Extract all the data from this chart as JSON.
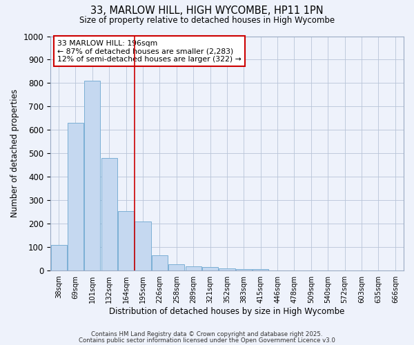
{
  "title_line1": "33, MARLOW HILL, HIGH WYCOMBE, HP11 1PN",
  "title_line2": "Size of property relative to detached houses in High Wycombe",
  "xlabel": "Distribution of detached houses by size in High Wycombe",
  "ylabel": "Number of detached properties",
  "annotation_line1": "33 MARLOW HILL: 196sqm",
  "annotation_line2": "← 87% of detached houses are smaller (2,283)",
  "annotation_line3": "12% of semi-detached houses are larger (322) →",
  "categories": [
    "38sqm",
    "69sqm",
    "101sqm",
    "132sqm",
    "164sqm",
    "195sqm",
    "226sqm",
    "258sqm",
    "289sqm",
    "321sqm",
    "352sqm",
    "383sqm",
    "415sqm",
    "446sqm",
    "478sqm",
    "509sqm",
    "540sqm",
    "572sqm",
    "603sqm",
    "635sqm",
    "666sqm"
  ],
  "values": [
    110,
    630,
    810,
    480,
    255,
    210,
    65,
    28,
    20,
    15,
    10,
    8,
    8,
    0,
    0,
    0,
    0,
    0,
    0,
    0,
    0
  ],
  "bar_color": "#c5d8f0",
  "bar_edgecolor": "#7bafd4",
  "redline_x": 4.5,
  "ylim": [
    0,
    1000
  ],
  "yticks": [
    0,
    100,
    200,
    300,
    400,
    500,
    600,
    700,
    800,
    900,
    1000
  ],
  "background_color": "#eef2fb",
  "grid_color": "#b8c4d8",
  "footer_line1": "Contains HM Land Registry data © Crown copyright and database right 2025.",
  "footer_line2": "Contains public sector information licensed under the Open Government Licence v3.0"
}
